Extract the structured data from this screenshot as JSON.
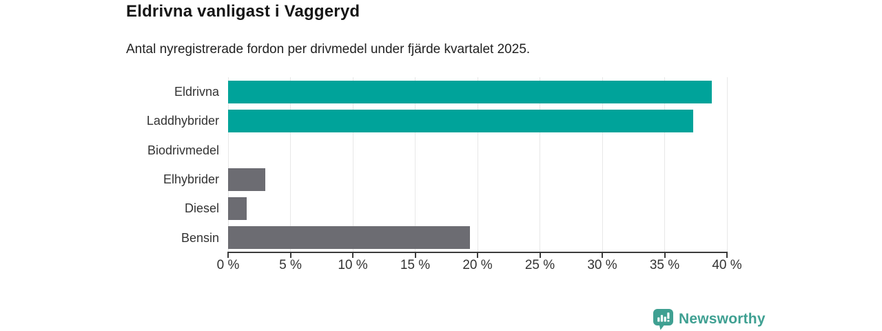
{
  "header": {
    "title": "Eldrivna vanligast i Vaggeryd",
    "subtitle": "Antal nyregistrerade fordon per drivmedel under fjärde kvartalet 2025."
  },
  "chart_data": {
    "type": "bar",
    "orientation": "horizontal",
    "title": "Eldrivna vanligast i Vaggeryd",
    "subtitle": "Antal nyregistrerade fordon per drivmedel under fjärde kvartalet 2025.",
    "categories": [
      "Eldrivna",
      "Laddhybrider",
      "Biodrivmedel",
      "Elhybrider",
      "Diesel",
      "Bensin"
    ],
    "values": [
      38.8,
      37.3,
      0,
      3,
      1.5,
      19.4
    ],
    "unit": "%",
    "xlim": [
      0,
      40
    ],
    "x_ticks": [
      0,
      5,
      10,
      15,
      20,
      25,
      30,
      35,
      40
    ],
    "x_tick_labels": [
      "0 %",
      "5 %",
      "10 %",
      "15 %",
      "20 %",
      "25 %",
      "30 %",
      "35 %",
      "40 %"
    ],
    "bar_colors": [
      "#00a39a",
      "#00a39a",
      "#00a39a",
      "#6c6c72",
      "#6c6c72",
      "#6c6c72"
    ],
    "grid": true,
    "legend": "none"
  },
  "colors": {
    "highlight_teal": "#00a39a",
    "neutral_gray": "#6c6c72",
    "gridline": "#e7e7e7",
    "axis": "#3b3b3b",
    "text": "#333333",
    "logo_teal": "#3fa092"
  },
  "footer": {
    "brand": "Newsworthy"
  }
}
